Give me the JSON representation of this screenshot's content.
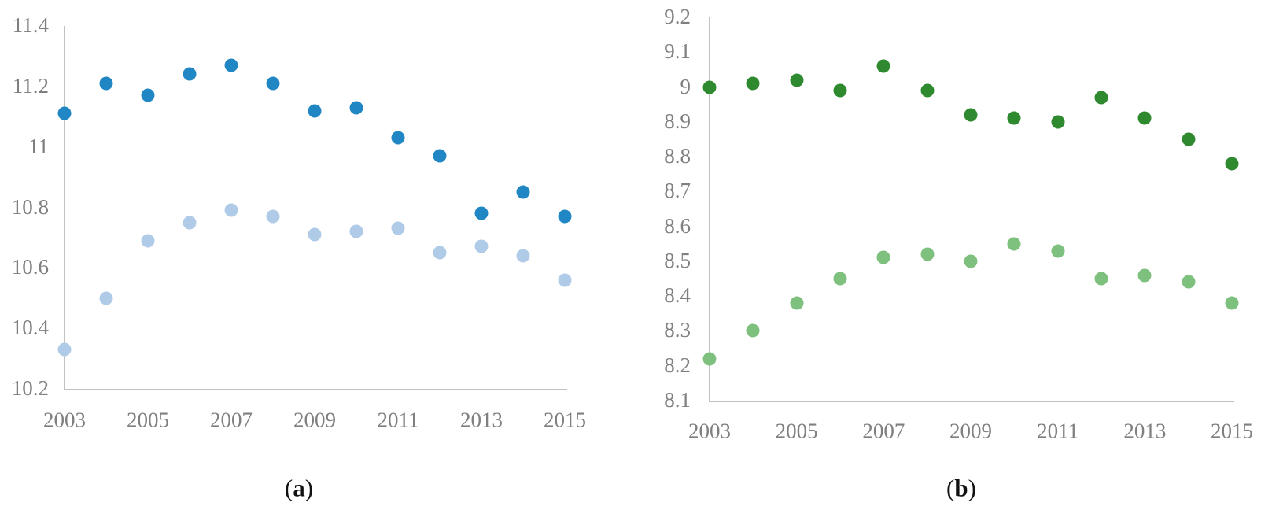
{
  "figure": {
    "background": "#ffffff",
    "axis_color": "#c2c2c2",
    "tick_label_color": "#7f7f7f",
    "caption_color": "#111111"
  },
  "chart_data": [
    {
      "id": "a",
      "type": "scatter",
      "caption": {
        "open": "(",
        "letter": "a",
        "close": ")"
      },
      "title": "",
      "xlabel": "",
      "ylabel": "",
      "x": [
        2003,
        2004,
        2005,
        2006,
        2007,
        2008,
        2009,
        2010,
        2011,
        2012,
        2013,
        2014,
        2015
      ],
      "xlim": [
        2003,
        2015
      ],
      "ylim": [
        10.2,
        11.4
      ],
      "xticks": [
        "2003",
        "2005",
        "2007",
        "2009",
        "2011",
        "2013",
        "2015"
      ],
      "yticks": [
        "11.4",
        "11.2",
        "11",
        "10.8",
        "10.6",
        "10.4",
        "10.2"
      ],
      "grid": false,
      "legend": "none",
      "series": [
        {
          "name": "upper-dark-blue",
          "color": "#2186c4",
          "values": [
            11.11,
            11.21,
            11.17,
            11.24,
            11.27,
            11.21,
            11.12,
            11.13,
            11.03,
            10.97,
            10.78,
            10.85,
            10.77
          ]
        },
        {
          "name": "lower-light-blue",
          "color": "#afcbe8",
          "values": [
            10.33,
            10.5,
            10.69,
            10.75,
            10.79,
            10.77,
            10.71,
            10.72,
            10.73,
            10.65,
            10.67,
            10.64,
            10.56
          ]
        }
      ]
    },
    {
      "id": "b",
      "type": "scatter",
      "caption": {
        "open": "(",
        "letter": "b",
        "close": ")"
      },
      "title": "",
      "xlabel": "",
      "ylabel": "",
      "x": [
        2003,
        2004,
        2005,
        2006,
        2007,
        2008,
        2009,
        2010,
        2011,
        2012,
        2013,
        2014,
        2015
      ],
      "xlim": [
        2003,
        2015
      ],
      "ylim": [
        8.1,
        9.2
      ],
      "xticks": [
        "2003",
        "2005",
        "2007",
        "2009",
        "2011",
        "2013",
        "2015"
      ],
      "yticks": [
        "9.2",
        "9.1",
        "9",
        "8.9",
        "8.8",
        "8.7",
        "8.6",
        "8.5",
        "8.4",
        "8.3",
        "8.2",
        "8.1"
      ],
      "grid": false,
      "legend": "none",
      "series": [
        {
          "name": "upper-dark-green",
          "color": "#2f8a2f",
          "values": [
            9.0,
            9.01,
            9.02,
            8.99,
            9.06,
            8.99,
            8.92,
            8.91,
            8.9,
            8.97,
            8.91,
            8.85,
            8.78
          ]
        },
        {
          "name": "lower-light-green",
          "color": "#7ec07e",
          "values": [
            8.22,
            8.3,
            8.38,
            8.45,
            8.51,
            8.52,
            8.5,
            8.55,
            8.53,
            8.45,
            8.46,
            8.44,
            8.38
          ]
        }
      ]
    }
  ]
}
